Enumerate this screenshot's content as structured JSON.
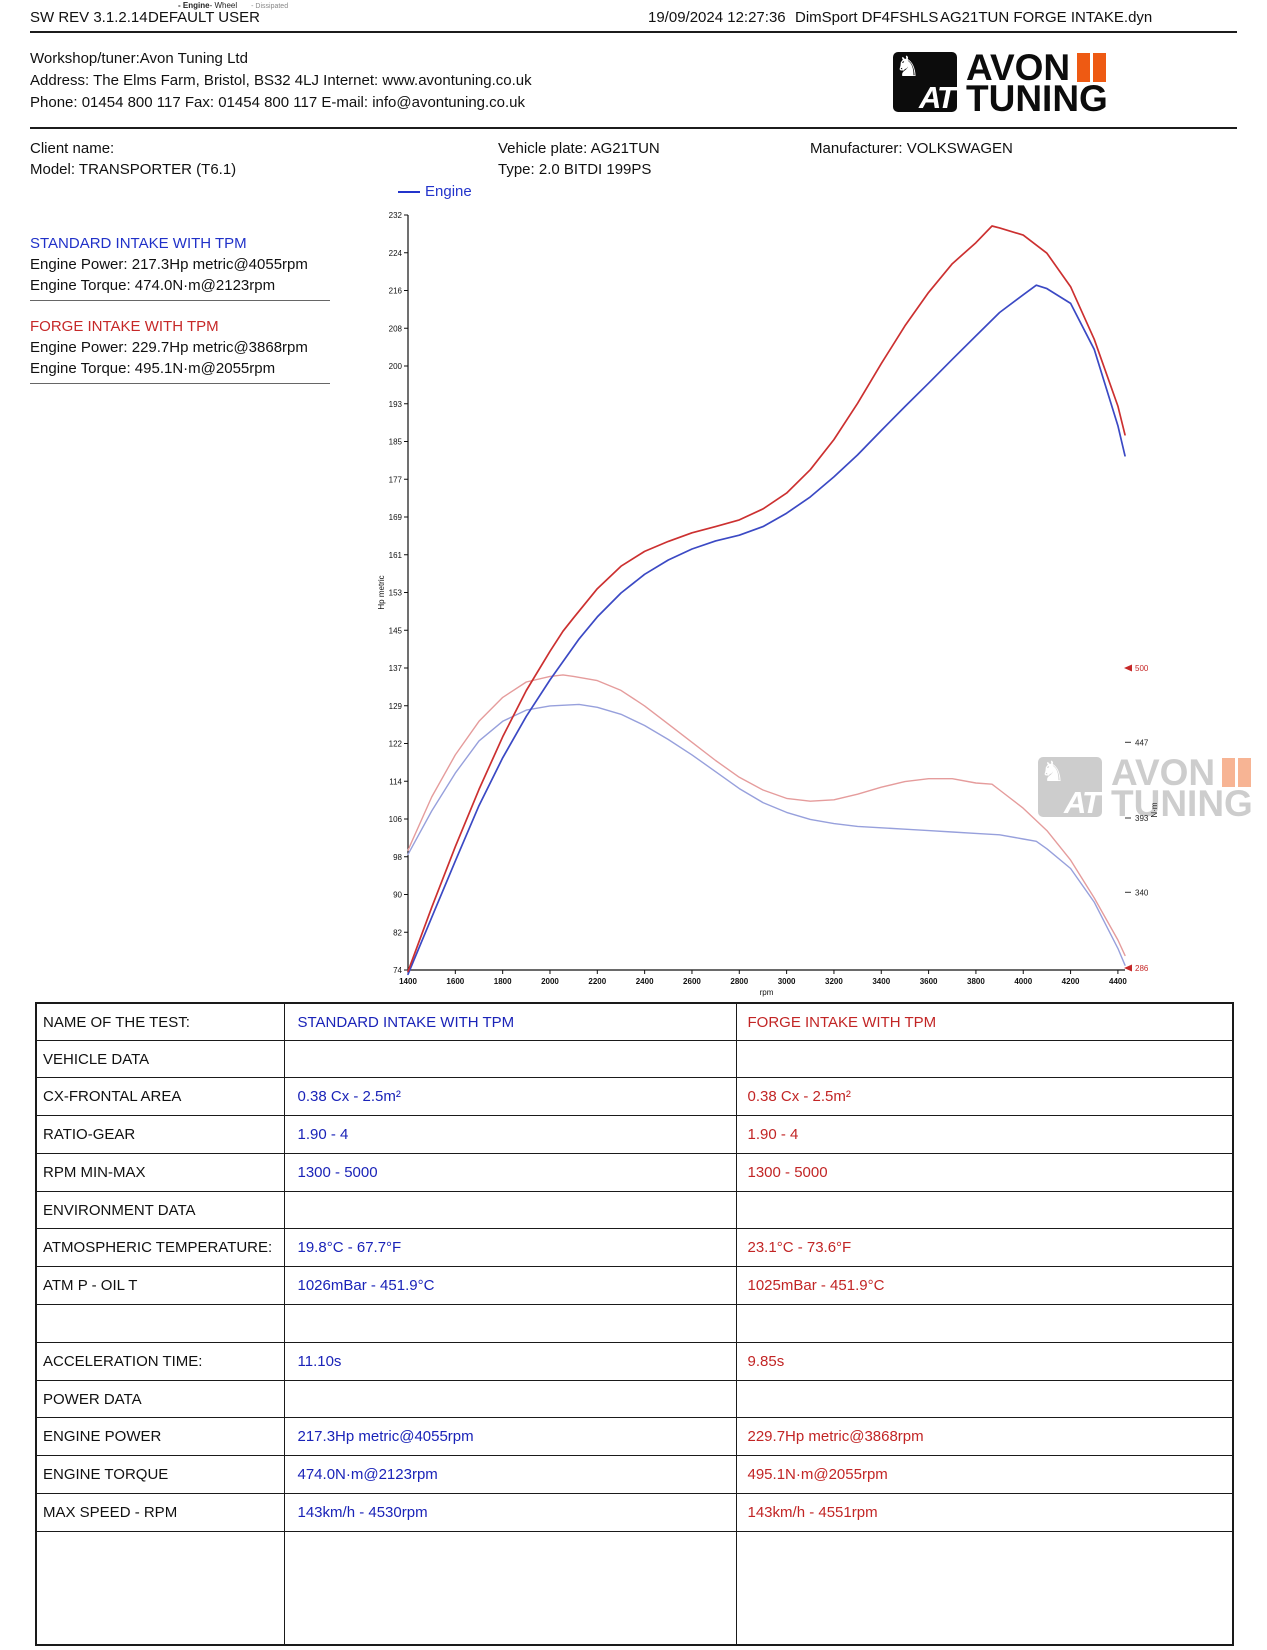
{
  "header": {
    "mini": {
      "engine": "- Engine",
      "wheel": "- Wheel",
      "dissipated": "- Dissipated"
    },
    "sw_rev": "SW REV 3.1.2.14",
    "user": "DEFAULT USER",
    "datetime": "19/09/2024 12:27:36",
    "device": "DimSport DF4FSHLS",
    "filename": "AG21TUN FORGE INTAKE.dyn"
  },
  "workshop": {
    "line1": "Workshop/tuner:Avon Tuning Ltd",
    "line2": "Address: The Elms Farm, Bristol, BS32 4LJ Internet: www.avontuning.co.uk",
    "line3": "Phone: 01454 800 117 Fax: 01454 800 117 E-mail: info@avontuning.co.uk"
  },
  "logo": {
    "emblem_text": "AT",
    "word1": "AVON",
    "word2": "TUNING",
    "orange": "#ee5a13"
  },
  "client": {
    "name_label": "Client name:",
    "model": "Model: TRANSPORTER (T6.1)",
    "plate": "Vehicle plate: AG21TUN",
    "type": "Type: 2.0 BITDI 199PS",
    "manufacturer": "Manufacturer: VOLKSWAGEN"
  },
  "annotations": {
    "legend": "Engine",
    "standard": {
      "title": "STANDARD INTAKE WITH TPM",
      "power": "Engine Power: 217.3Hp metric@4055rpm",
      "torque": "Engine Torque: 474.0N·m@2123rpm"
    },
    "forge": {
      "title": "FORGE INTAKE WITH TPM",
      "power": "Engine Power: 229.7Hp metric@3868rpm",
      "torque": "Engine Torque: 495.1N·m@2055rpm"
    }
  },
  "chart_data": {
    "type": "line",
    "title": "",
    "xlabel": "rpm",
    "ylabel_left": "Hp metric",
    "ylabel_right": "N·m",
    "x_range": [
      1400,
      4430
    ],
    "y_left_range": [
      74,
      232
    ],
    "y_right_range": [
      286,
      500
    ],
    "x_ticks": [
      1400,
      1600,
      1800,
      2000,
      2200,
      2400,
      2600,
      2800,
      3000,
      3200,
      3400,
      3600,
      3800,
      4000,
      4200,
      4400
    ],
    "y_left_ticks": [
      232,
      224,
      216,
      208,
      200,
      193,
      185,
      177,
      169,
      161,
      153,
      145,
      137,
      129,
      122,
      114,
      106,
      98,
      90,
      82,
      74
    ],
    "y_right_ticks": [
      500,
      447,
      393,
      340,
      286
    ],
    "grid": false,
    "legend_position": "top-left",
    "series": [
      {
        "name": "standard-torque",
        "axis": "right",
        "color": "#97a0dc",
        "width": 1.4,
        "x": [
          1400,
          1500,
          1600,
          1700,
          1800,
          1900,
          2000,
          2123,
          2200,
          2300,
          2400,
          2500,
          2600,
          2700,
          2800,
          2900,
          3000,
          3100,
          3200,
          3300,
          3400,
          3500,
          3600,
          3700,
          3800,
          3900,
          4000,
          4055,
          4100,
          4200,
          4300,
          4400,
          4430
        ],
        "y": [
          367,
          398,
          425,
          448,
          462,
          470,
          473,
          474,
          472,
          467,
          459,
          449,
          438,
          426,
          414,
          404,
          397,
          392,
          389,
          387,
          386,
          385,
          384,
          383,
          382,
          381,
          378,
          376.4,
          371,
          357,
          333,
          300,
          288
        ]
      },
      {
        "name": "forge-torque",
        "axis": "right",
        "color": "#e59c9c",
        "width": 1.4,
        "x": [
          1400,
          1500,
          1600,
          1700,
          1800,
          1900,
          2000,
          2055,
          2100,
          2200,
          2300,
          2400,
          2500,
          2600,
          2700,
          2800,
          2900,
          3000,
          3100,
          3200,
          3300,
          3400,
          3500,
          3600,
          3700,
          3800,
          3868,
          3900,
          4000,
          4100,
          4200,
          4300,
          4400,
          4430
        ],
        "y": [
          370,
          408,
          438,
          462,
          479,
          490,
          494,
          495.1,
          494,
          491,
          484,
          473,
          460,
          447,
          434,
          422,
          413,
          407,
          405,
          406,
          410,
          415,
          419,
          421,
          421,
          418,
          417.1,
          413,
          400,
          384,
          363,
          336,
          306,
          295
        ]
      },
      {
        "name": "standard-power",
        "axis": "left",
        "color": "#3b49c4",
        "width": 1.7,
        "x": [
          1400,
          1500,
          1600,
          1700,
          1800,
          1900,
          2000,
          2123,
          2200,
          2300,
          2400,
          2500,
          2600,
          2700,
          2800,
          2900,
          3000,
          3100,
          3200,
          3300,
          3400,
          3500,
          3600,
          3700,
          3800,
          3900,
          4000,
          4055,
          4100,
          4200,
          4300,
          4400,
          4430
        ],
        "y": [
          73.1,
          85.0,
          96.8,
          108.4,
          118.4,
          127.1,
          134.7,
          143.3,
          147.9,
          152.9,
          156.8,
          159.8,
          162.1,
          163.8,
          165.0,
          166.8,
          169.6,
          173.0,
          177.2,
          181.8,
          186.9,
          191.9,
          196.8,
          201.8,
          206.7,
          211.6,
          215.3,
          217.3,
          216.6,
          213.5,
          203.9,
          187.9,
          181.6
        ]
      },
      {
        "name": "forge-power",
        "axis": "left",
        "color": "#cc3030",
        "width": 1.7,
        "x": [
          1400,
          1500,
          1600,
          1700,
          1800,
          1900,
          2000,
          2055,
          2100,
          2200,
          2300,
          2400,
          2500,
          2600,
          2700,
          2800,
          2900,
          3000,
          3100,
          3200,
          3300,
          3400,
          3500,
          3600,
          3700,
          3800,
          3868,
          3900,
          4000,
          4100,
          4200,
          4300,
          4400,
          4430
        ],
        "y": [
          73.7,
          87.1,
          99.8,
          111.8,
          122.8,
          132.5,
          140.7,
          144.9,
          147.7,
          153.8,
          158.5,
          161.6,
          163.7,
          165.5,
          166.8,
          168.2,
          170.5,
          173.8,
          178.7,
          185.0,
          192.6,
          200.9,
          208.8,
          215.8,
          221.8,
          226.2,
          229.7,
          229.3,
          227.8,
          224.0,
          217.0,
          206.0,
          192.0,
          186.0
        ]
      }
    ]
  },
  "table": {
    "rows": [
      {
        "kind": "header",
        "label": "NAME OF THE TEST:",
        "std": "STANDARD INTAKE WITH TPM",
        "forge": "FORGE INTAKE WITH TPM"
      },
      {
        "kind": "section",
        "label": "VEHICLE DATA",
        "std": "",
        "forge": ""
      },
      {
        "kind": "data",
        "label": "CX-FRONTAL AREA",
        "std": "0.38 Cx - 2.5m²",
        "forge": "0.38 Cx - 2.5m²"
      },
      {
        "kind": "data",
        "label": "RATIO-GEAR",
        "std": "1.90 - 4",
        "forge": "1.90 - 4"
      },
      {
        "kind": "data",
        "label": "RPM MIN-MAX",
        "std": "1300 - 5000",
        "forge": "1300 - 5000"
      },
      {
        "kind": "section",
        "label": "ENVIRONMENT DATA",
        "std": "",
        "forge": ""
      },
      {
        "kind": "data",
        "label": "ATMOSPHERIC TEMPERATURE:",
        "std": "19.8°C - 67.7°F",
        "forge": "23.1°C - 73.6°F"
      },
      {
        "kind": "data",
        "label": "ATM P - OIL T",
        "std": "1026mBar - 451.9°C",
        "forge": "1025mBar - 451.9°C"
      },
      {
        "kind": "blank",
        "label": "",
        "std": "",
        "forge": ""
      },
      {
        "kind": "data",
        "label": "ACCELERATION TIME:",
        "std": "11.10s",
        "forge": "9.85s"
      },
      {
        "kind": "section",
        "label": "POWER DATA",
        "std": "",
        "forge": ""
      },
      {
        "kind": "data",
        "label": "ENGINE POWER",
        "std": "217.3Hp metric@4055rpm",
        "forge": "229.7Hp metric@3868rpm"
      },
      {
        "kind": "data",
        "label": "ENGINE TORQUE",
        "std": "474.0N·m@2123rpm",
        "forge": "495.1N·m@2055rpm"
      },
      {
        "kind": "data",
        "label": "MAX SPEED - RPM",
        "std": "143km/h - 4530rpm",
        "forge": "143km/h - 4551rpm"
      },
      {
        "kind": "spacer",
        "label": "",
        "std": "",
        "forge": ""
      }
    ]
  }
}
